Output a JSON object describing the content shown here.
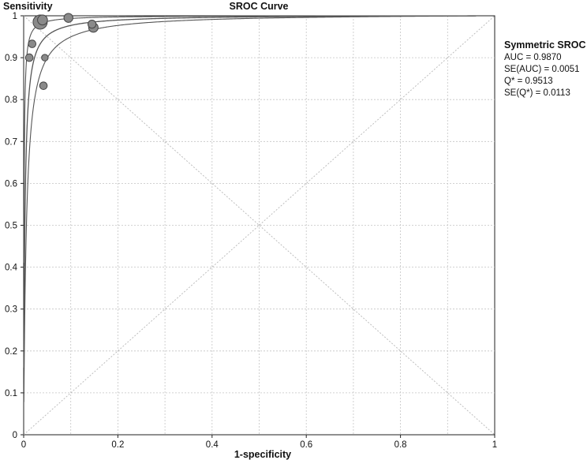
{
  "chart_data": {
    "type": "scatter",
    "title": "SROC Curve",
    "xlabel": "1-specificity",
    "ylabel": "Sensitivity",
    "xlim": [
      0,
      1
    ],
    "ylim": [
      0,
      1
    ],
    "xticks": [
      "0",
      "0.2",
      "0.4",
      "0.6",
      "0.8",
      "1"
    ],
    "yticks": [
      "0",
      "0.1",
      "0.2",
      "0.3",
      "0.4",
      "0.5",
      "0.6",
      "0.7",
      "0.8",
      "0.9",
      "1"
    ],
    "grid": true,
    "diagonals": true,
    "studies": [
      {
        "x": 0.035,
        "y": 0.985,
        "weight": 1.0
      },
      {
        "x": 0.04,
        "y": 0.99,
        "weight": 0.55
      },
      {
        "x": 0.095,
        "y": 0.995,
        "weight": 0.45
      },
      {
        "x": 0.148,
        "y": 0.972,
        "weight": 0.5
      },
      {
        "x": 0.145,
        "y": 0.98,
        "weight": 0.35
      },
      {
        "x": 0.018,
        "y": 0.933,
        "weight": 0.3
      },
      {
        "x": 0.012,
        "y": 0.9,
        "weight": 0.3
      },
      {
        "x": 0.045,
        "y": 0.9,
        "weight": 0.2
      },
      {
        "x": 0.042,
        "y": 0.833,
        "weight": 0.3
      }
    ],
    "sroc": {
      "Q_star": 0.9513,
      "curve_band": [
        0.9513,
        0.9739,
        0.9287
      ],
      "legend_title": "Symmetric SROC",
      "stats": [
        "AUC = 0.9870",
        "SE(AUC) = 0.0051",
        "Q* = 0.9513",
        "SE(Q*) = 0.0113"
      ]
    },
    "colors": {
      "curve": "#555555",
      "grid": "#c4c4c4",
      "point_fill": "#8a8a8a",
      "point_stroke": "#444444",
      "axis": "#222222"
    }
  }
}
